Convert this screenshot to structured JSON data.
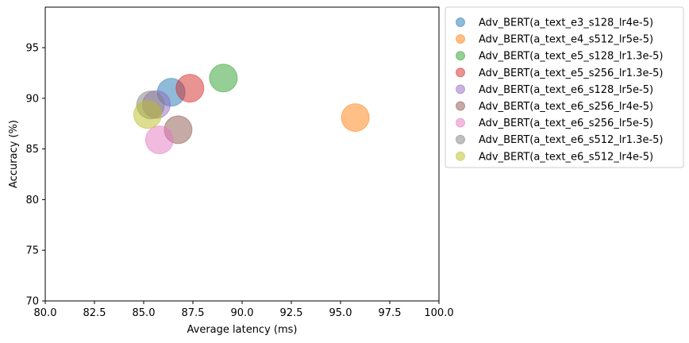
{
  "chart_data": {
    "type": "scatter",
    "xlabel": "Average latency (ms)",
    "ylabel": "Accuracy (%)",
    "xlim": [
      80,
      100
    ],
    "ylim": [
      70,
      99
    ],
    "xticks": [
      "80.0",
      "82.5",
      "85.0",
      "87.5",
      "90.0",
      "92.5",
      "95.0",
      "97.5",
      "100.0"
    ],
    "yticks": [
      "70",
      "75",
      "80",
      "85",
      "90",
      "95"
    ],
    "legend_position": "outside-right",
    "series": [
      {
        "name": "Adv_BERT(a_text_e3_s128_lr4e-5)",
        "color": "#1f77b4",
        "x": 86.4,
        "y": 90.6
      },
      {
        "name": "Adv_BERT(a_text_e4_s512_lr5e-5)",
        "color": "#ff7f0e",
        "x": 95.75,
        "y": 88.1
      },
      {
        "name": "Adv_BERT(a_text_e5_s128_lr1.3e-5)",
        "color": "#2ca02c",
        "x": 89.05,
        "y": 92.0
      },
      {
        "name": "Adv_BERT(a_text_e5_s256_lr1.3e-5)",
        "color": "#d62728",
        "x": 87.35,
        "y": 91.0
      },
      {
        "name": "Adv_BERT(a_text_e6_s128_lr5e-5)",
        "color": "#9467bd",
        "x": 85.65,
        "y": 89.4
      },
      {
        "name": "Adv_BERT(a_text_e6_s256_lr4e-5)",
        "color": "#8c564b",
        "x": 86.75,
        "y": 86.9
      },
      {
        "name": "Adv_BERT(a_text_e6_s256_lr5e-5)",
        "color": "#e377c2",
        "x": 85.8,
        "y": 85.9
      },
      {
        "name": "Adv_BERT(a_text_e6_s512_lr1.3e-5)",
        "color": "#7f7f7f",
        "x": 85.35,
        "y": 89.35
      },
      {
        "name": "Adv_BERT(a_text_e6_s512_lr4e-5)",
        "color": "#bcbd22",
        "x": 85.2,
        "y": 88.4
      }
    ]
  }
}
